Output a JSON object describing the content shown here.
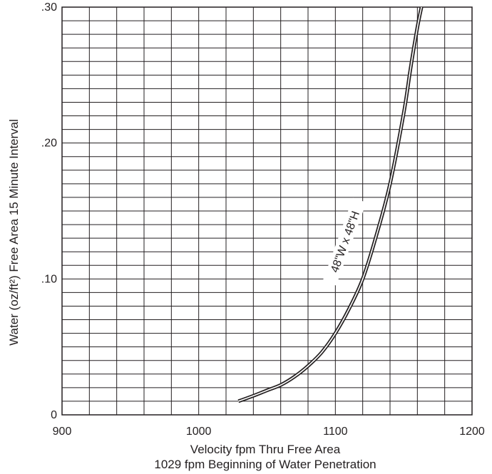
{
  "chart_data": {
    "type": "line",
    "xlim": [
      900,
      1200
    ],
    "ylim": [
      0,
      0.3
    ],
    "x_ticks": [
      "900",
      "1000",
      "1100",
      "1200"
    ],
    "y_ticks": [
      ".30",
      ".20",
      ".10",
      "0"
    ],
    "x_tick_values": [
      900,
      1000,
      1100,
      1200
    ],
    "y_tick_values": [
      0.3,
      0.2,
      0.1,
      0
    ],
    "xlabel": "Velocity fpm Thru Free Area",
    "xlabel_note": "1029 fpm Beginning of Water Penetration",
    "ylabel": "Water (oz/ft²) Free Area 15 Minute Interval",
    "grid": true,
    "x_grid_step": 20,
    "y_grid_step": 0.01,
    "series": [
      {
        "name": "48\"W x 48\"H",
        "x": [
          1029,
          1040,
          1050,
          1060,
          1070,
          1080,
          1090,
          1100,
          1110,
          1120,
          1130,
          1140,
          1150,
          1155,
          1160,
          1163
        ],
        "y": [
          0.01,
          0.014,
          0.018,
          0.022,
          0.028,
          0.036,
          0.046,
          0.06,
          0.078,
          0.1,
          0.132,
          0.17,
          0.222,
          0.255,
          0.285,
          0.3
        ]
      }
    ]
  }
}
